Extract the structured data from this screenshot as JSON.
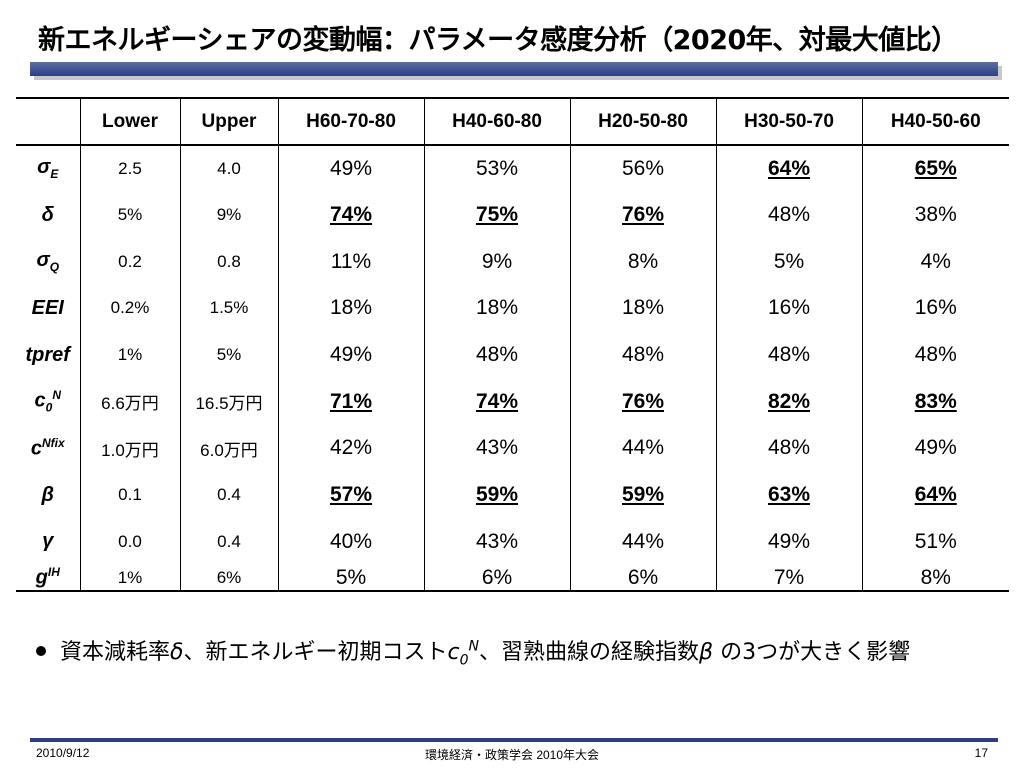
{
  "title": "新エネルギーシェアの変動幅：パラメータ感度分析（2020年、対最大値比）",
  "table": {
    "headers": [
      "Lower",
      "Upper",
      "H60-70-80",
      "H40-60-80",
      "H20-50-80",
      "H30-50-70",
      "H40-50-60"
    ],
    "rows": [
      {
        "param_base": "σ",
        "param_sub": "E",
        "param_sup": "",
        "lower": "2.5",
        "upper": "4.0",
        "values": [
          "49%",
          "53%",
          "56%",
          "64%",
          "65%"
        ],
        "highlight": [
          false,
          false,
          false,
          true,
          true
        ]
      },
      {
        "param_base": "δ",
        "param_sub": "",
        "param_sup": "",
        "lower": "5%",
        "upper": "9%",
        "values": [
          "74%",
          "75%",
          "76%",
          "48%",
          "38%"
        ],
        "highlight": [
          true,
          true,
          true,
          false,
          false
        ]
      },
      {
        "param_base": "σ",
        "param_sub": "Q",
        "param_sup": "",
        "lower": "0.2",
        "upper": "0.8",
        "values": [
          "11%",
          "9%",
          "8%",
          "5%",
          "4%"
        ],
        "highlight": [
          false,
          false,
          false,
          false,
          false
        ]
      },
      {
        "param_base": "EEI",
        "param_sub": "",
        "param_sup": "",
        "lower": "0.2%",
        "upper": "1.5%",
        "values": [
          "18%",
          "18%",
          "18%",
          "16%",
          "16%"
        ],
        "highlight": [
          false,
          false,
          false,
          false,
          false
        ]
      },
      {
        "param_base": "tpref",
        "param_sub": "",
        "param_sup": "",
        "lower": "1%",
        "upper": "5%",
        "values": [
          "49%",
          "48%",
          "48%",
          "48%",
          "48%"
        ],
        "highlight": [
          false,
          false,
          false,
          false,
          false
        ]
      },
      {
        "param_base": "c",
        "param_sub": "0",
        "param_sup": "N",
        "lower": "6.6万円",
        "upper": "16.5万円",
        "values": [
          "71%",
          "74%",
          "76%",
          "82%",
          "83%"
        ],
        "highlight": [
          true,
          true,
          true,
          true,
          true
        ]
      },
      {
        "param_base": "c",
        "param_sub": "",
        "param_sup": "Nfix",
        "lower": "1.0万円",
        "upper": "6.0万円",
        "values": [
          "42%",
          "43%",
          "44%",
          "48%",
          "49%"
        ],
        "highlight": [
          false,
          false,
          false,
          false,
          false
        ]
      },
      {
        "param_base": "β",
        "param_sub": "",
        "param_sup": "",
        "lower": "0.1",
        "upper": "0.4",
        "values": [
          "57%",
          "59%",
          "59%",
          "63%",
          "64%"
        ],
        "highlight": [
          true,
          true,
          true,
          true,
          true
        ]
      },
      {
        "param_base": "γ",
        "param_sub": "",
        "param_sup": "",
        "lower": "0.0",
        "upper": "0.4",
        "values": [
          "40%",
          "43%",
          "44%",
          "49%",
          "51%"
        ],
        "highlight": [
          false,
          false,
          false,
          false,
          false
        ]
      },
      {
        "param_base": "g",
        "param_sub": "",
        "param_sup": "IH",
        "lower": "1%",
        "upper": "6%",
        "values": [
          "5%",
          "6%",
          "6%",
          "7%",
          "8%"
        ],
        "highlight": [
          false,
          false,
          false,
          false,
          false
        ]
      }
    ]
  },
  "bullet": {
    "part1": "資本減耗率",
    "delta": "δ",
    "part2": "、新エネルギー初期コスト",
    "c_base": "c",
    "c_sub": "0",
    "c_sup": "N",
    "part3": "、習熟曲線の経験指数",
    "beta": "β",
    "part4": " の3つが大きく影響"
  },
  "footer": {
    "date": "2010/9/12",
    "conference": "環境経済・政策学会 2010年大会",
    "page": "17"
  }
}
